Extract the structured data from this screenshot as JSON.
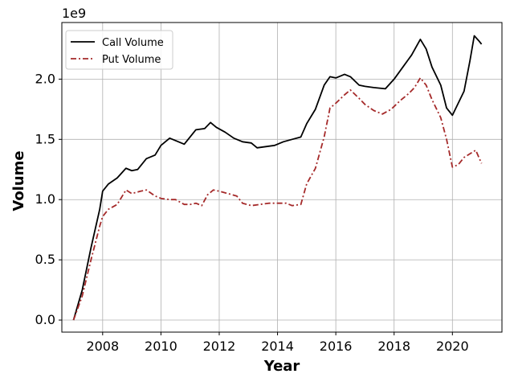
{
  "chart_data": {
    "type": "line",
    "title": "",
    "xlabel": "Year",
    "ylabel": "Volume",
    "y_offset_text": "1e9",
    "xlim": [
      2006.6,
      2021.7
    ],
    "ylim": [
      -100000000.0,
      2470000000.0
    ],
    "x_ticks": [
      2008,
      2010,
      2012,
      2014,
      2016,
      2018,
      2020
    ],
    "x_tick_labels": [
      "2008",
      "2010",
      "2012",
      "2014",
      "2016",
      "2018",
      "2020"
    ],
    "y_ticks": [
      0,
      500000000.0,
      1000000000.0,
      1500000000.0,
      2000000000.0
    ],
    "y_tick_labels": [
      "0.0",
      "0.5",
      "1.0",
      "1.5",
      "2.0"
    ],
    "grid": true,
    "legend_position": "top-left",
    "series": [
      {
        "name": "Call Volume",
        "color": "#000000",
        "style": "solid",
        "x": [
          2007.0,
          2007.3,
          2007.6,
          2007.9,
          2008.0,
          2008.2,
          2008.5,
          2008.8,
          2009.0,
          2009.2,
          2009.5,
          2009.8,
          2010.0,
          2010.3,
          2010.5,
          2010.8,
          2011.0,
          2011.2,
          2011.5,
          2011.7,
          2011.9,
          2012.2,
          2012.5,
          2012.8,
          2013.1,
          2013.3,
          2013.6,
          2013.9,
          2014.2,
          2014.5,
          2014.8,
          2015.0,
          2015.3,
          2015.6,
          2015.8,
          2016.0,
          2016.3,
          2016.5,
          2016.8,
          2017.0,
          2017.3,
          2017.7,
          2018.0,
          2018.3,
          2018.6,
          2018.9,
          2019.1,
          2019.3,
          2019.6,
          2019.8,
          2020.0,
          2020.2,
          2020.4,
          2020.6,
          2020.75,
          2020.9,
          2021.0
        ],
        "values": [
          0.0,
          250000000.0,
          600000000.0,
          920000000.0,
          1070000000.0,
          1130000000.0,
          1180000000.0,
          1260000000.0,
          1240000000.0,
          1250000000.0,
          1340000000.0,
          1370000000.0,
          1450000000.0,
          1510000000.0,
          1490000000.0,
          1460000000.0,
          1520000000.0,
          1580000000.0,
          1590000000.0,
          1640000000.0,
          1600000000.0,
          1560000000.0,
          1510000000.0,
          1480000000.0,
          1470000000.0,
          1430000000.0,
          1440000000.0,
          1450000000.0,
          1480000000.0,
          1500000000.0,
          1520000000.0,
          1630000000.0,
          1750000000.0,
          1950000000.0,
          2020000000.0,
          2010000000.0,
          2040000000.0,
          2020000000.0,
          1950000000.0,
          1940000000.0,
          1930000000.0,
          1920000000.0,
          2000000000.0,
          2100000000.0,
          2200000000.0,
          2330000000.0,
          2250000000.0,
          2100000000.0,
          1950000000.0,
          1760000000.0,
          1700000000.0,
          1800000000.0,
          1900000000.0,
          2150000000.0,
          2360000000.0,
          2320000000.0,
          2290000000.0
        ]
      },
      {
        "name": "Put Volume",
        "color": "#a52a2a",
        "style": "dashdot",
        "x": [
          2007.0,
          2007.3,
          2007.6,
          2007.9,
          2008.0,
          2008.2,
          2008.5,
          2008.8,
          2009.0,
          2009.3,
          2009.5,
          2009.8,
          2010.0,
          2010.3,
          2010.5,
          2010.8,
          2011.0,
          2011.2,
          2011.4,
          2011.6,
          2011.8,
          2012.0,
          2012.3,
          2012.6,
          2012.8,
          2013.1,
          2013.4,
          2013.7,
          2014.0,
          2014.3,
          2014.5,
          2014.8,
          2015.0,
          2015.3,
          2015.6,
          2015.8,
          2016.0,
          2016.3,
          2016.5,
          2016.8,
          2017.0,
          2017.3,
          2017.6,
          2017.9,
          2018.2,
          2018.5,
          2018.7,
          2018.9,
          2019.1,
          2019.3,
          2019.6,
          2019.8,
          2020.0,
          2020.2,
          2020.4,
          2020.6,
          2020.8,
          2021.0
        ],
        "values": [
          0.0,
          200000000.0,
          500000000.0,
          780000000.0,
          860000000.0,
          920000000.0,
          960000000.0,
          1080000000.0,
          1050000000.0,
          1070000000.0,
          1080000000.0,
          1030000000.0,
          1010000000.0,
          1000000000.0,
          1000000000.0,
          960000000.0,
          960000000.0,
          970000000.0,
          950000000.0,
          1040000000.0,
          1080000000.0,
          1070000000.0,
          1050000000.0,
          1030000000.0,
          970000000.0,
          950000000.0,
          960000000.0,
          970000000.0,
          970000000.0,
          970000000.0,
          950000000.0,
          960000000.0,
          1130000000.0,
          1260000000.0,
          1520000000.0,
          1760000000.0,
          1800000000.0,
          1870000000.0,
          1910000000.0,
          1840000000.0,
          1790000000.0,
          1740000000.0,
          1710000000.0,
          1750000000.0,
          1820000000.0,
          1880000000.0,
          1930000000.0,
          2010000000.0,
          1950000000.0,
          1830000000.0,
          1680000000.0,
          1500000000.0,
          1270000000.0,
          1290000000.0,
          1350000000.0,
          1380000000.0,
          1410000000.0,
          1300000000.0
        ]
      }
    ]
  }
}
